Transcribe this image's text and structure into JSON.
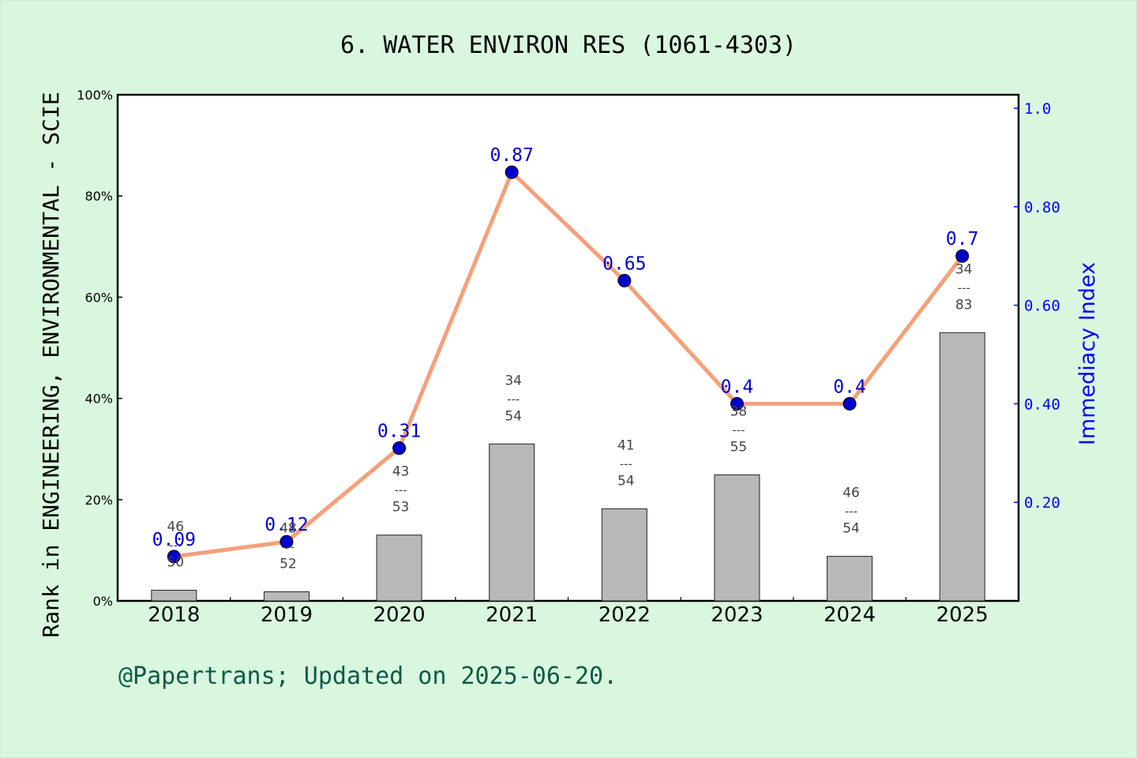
{
  "title": "6. WATER ENVIRON RES (1061-4303)",
  "footer": "@Papertrans; Updated on 2025-06-20.",
  "colors": {
    "background": "#d9f7df",
    "plot_background": "#ffffff",
    "bar": "#b8b8b8",
    "line": "#f5a07a",
    "marker": "#0000cd",
    "right_axis": "#0000ff",
    "footer": "#0d5a48"
  },
  "chart_data": {
    "type": "bar+line",
    "title": "6. WATER ENVIRON RES (1061-4303)",
    "categories": [
      "2018",
      "2019",
      "2020",
      "2021",
      "2022",
      "2023",
      "2024",
      "2025"
    ],
    "left_axis": {
      "label": "Rank in ENGINEERING, ENVIRONMENTAL - SCIE",
      "ticks": [
        "0%",
        "20%",
        "40%",
        "60%",
        "80%",
        "100%"
      ],
      "ylim": [
        0,
        100
      ]
    },
    "right_axis": {
      "label": "Immediacy Index",
      "ticks": [
        "0.20",
        "0.40",
        "0.60",
        "0.80",
        "1.0"
      ],
      "ylim": [
        0,
        1.0
      ]
    },
    "bars": {
      "values": [
        2.1,
        1.8,
        13.0,
        31.0,
        18.2,
        24.9,
        8.8,
        53.0
      ],
      "ranks": [
        "46",
        "48",
        "43",
        "34",
        "41",
        "38",
        "46",
        "34"
      ],
      "totals": [
        "50",
        "52",
        "53",
        "54",
        "54",
        "55",
        "54",
        "83"
      ],
      "divider": "---"
    },
    "line": {
      "values": [
        0.09,
        0.12,
        0.31,
        0.87,
        0.65,
        0.4,
        0.4,
        0.7
      ],
      "labels": [
        "0.09",
        "0.12",
        "0.31",
        "0.87",
        "0.65",
        "0.4",
        "0.4",
        "0.7"
      ]
    },
    "grid": false
  }
}
